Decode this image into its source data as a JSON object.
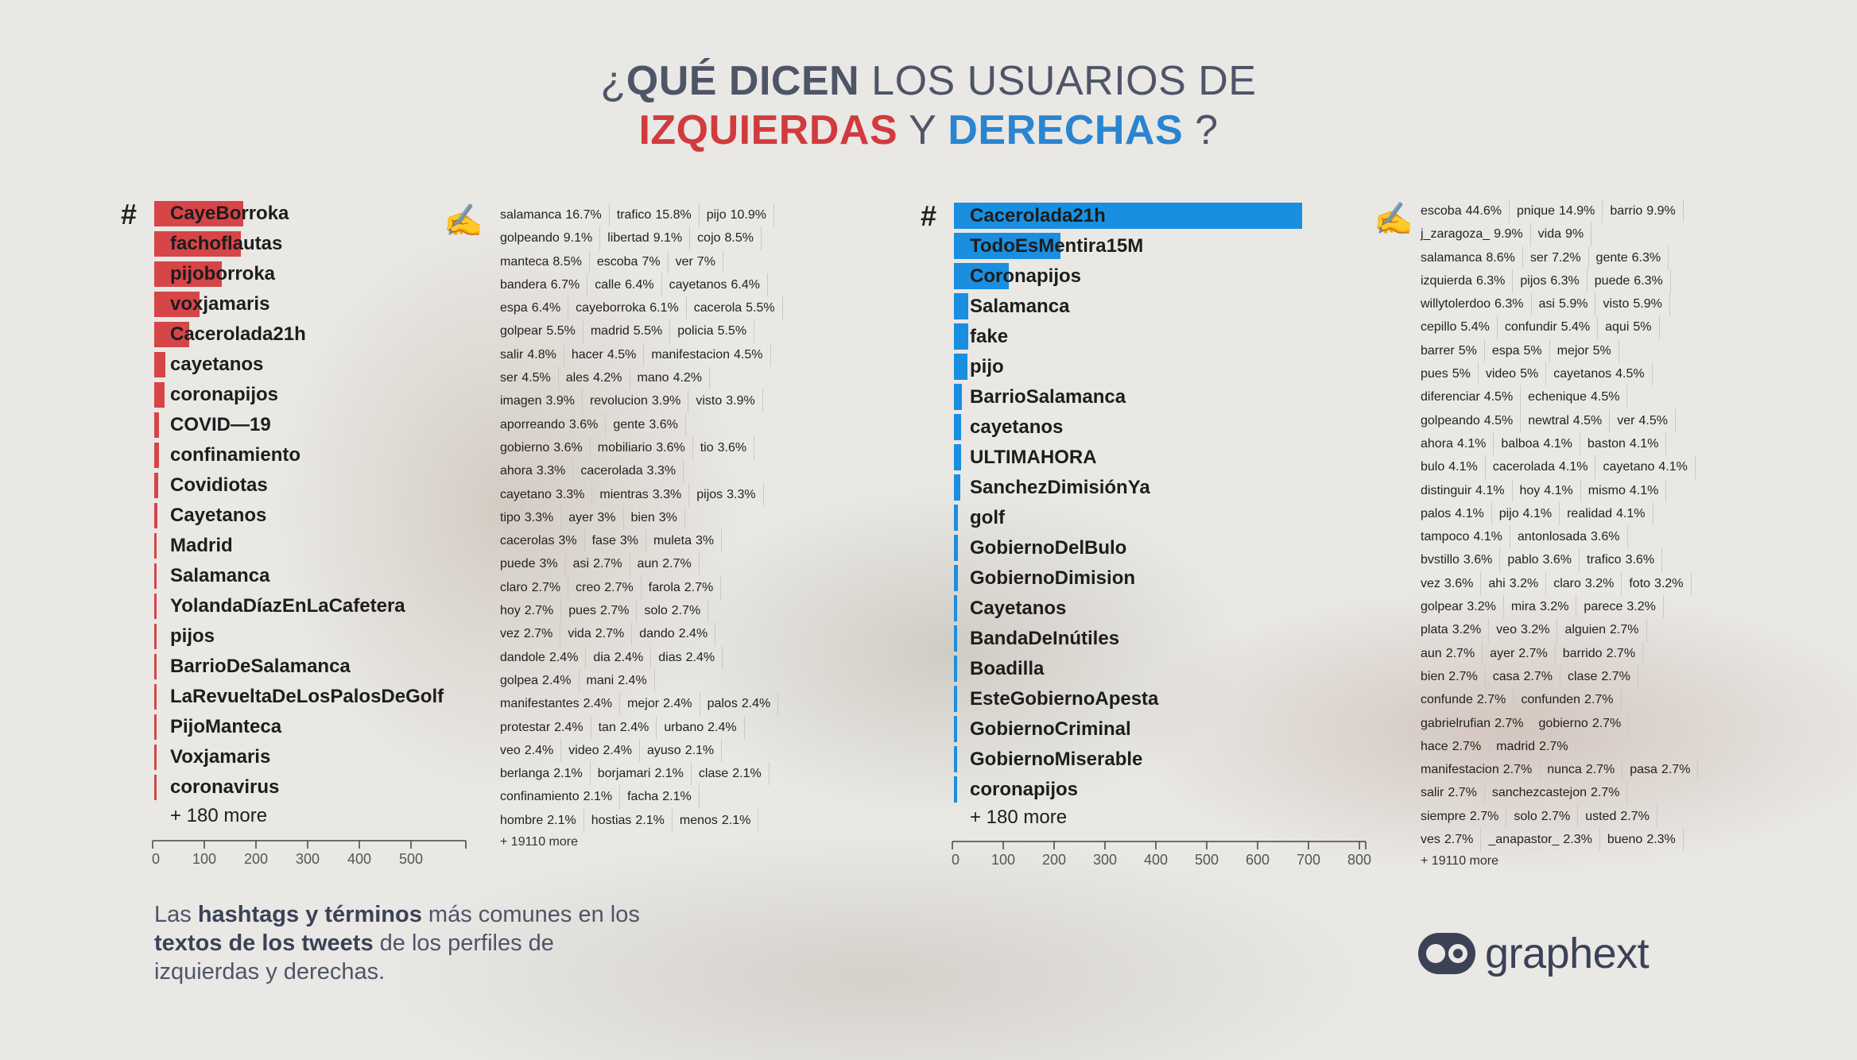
{
  "title": {
    "line1_prefix": "¿",
    "line1_bold": "QUÉ DICEN",
    "line1_rest": " LOS USUARIOS DE",
    "left_word": "IZQUIERDAS",
    "connector": " Y ",
    "right_word": "DERECHAS",
    "question_mark": " ?"
  },
  "colors": {
    "left_bar": "#d64548",
    "right_bar": "#1a8fe0",
    "title_red": "#d13b3e",
    "title_blue": "#2a84cf"
  },
  "icons": {
    "hashtag": "#",
    "terms": "writing-hand-icon"
  },
  "caption": {
    "p1": "Las ",
    "b1": "hashtags y términos",
    "p2": " más comunes en los",
    "b2": "textos de los tweets",
    "p3": " de los perfiles de",
    "p4": "izquierdas y derechas."
  },
  "logo_text": "graphext",
  "chart_data": [
    {
      "type": "bar",
      "orientation": "horizontal",
      "side": "izquierdas",
      "categories": [
        "CayeBorroka",
        "fachoflautas",
        "pijoborroka",
        "voxjamaris",
        "Cacerolada21h",
        "cayetanos",
        "coronapijos",
        "COVID—19",
        "confinamiento",
        "Covidiotas",
        "Cayetanos",
        "Madrid",
        "Salamanca",
        "YolandaDíazEnLaCafetera",
        "pijos",
        "BarrioDeSalamanca",
        "LaRevueltaDeLosPalosDeGolf",
        "PijoManteca",
        "Voxjamaris",
        "coronavirus"
      ],
      "values": [
        172,
        168,
        130,
        88,
        68,
        22,
        20,
        9,
        9,
        8,
        6,
        5,
        5,
        5,
        5,
        4,
        4,
        4,
        4,
        4
      ],
      "more": "+ 180 more",
      "xticks": [
        0,
        100,
        200,
        300,
        400,
        500
      ],
      "xlim": [
        0,
        600
      ]
    },
    {
      "type": "bar",
      "orientation": "horizontal",
      "side": "derechas",
      "categories": [
        "Cacerolada21h",
        "TodoEsMentira15M",
        "Coronapijos",
        "Salamanca",
        "fake",
        "pijo",
        "BarrioSalamanca",
        "cayetanos",
        "ULTIMAHORA",
        "SanchezDimisiónYa",
        "golf",
        "GobiernoDelBulo",
        "GobiernoDimision",
        "Cayetanos",
        "BandaDeInútiles",
        "Boadilla",
        "EsteGobiernoApesta",
        "GobiernoCriminal",
        "GobiernoMiserable",
        "coronapijos"
      ],
      "values": [
        685,
        210,
        108,
        28,
        28,
        26,
        16,
        14,
        14,
        12,
        8,
        8,
        8,
        7,
        7,
        6,
        6,
        6,
        6,
        6
      ],
      "more": "+ 180 more",
      "xticks": [
        0,
        100,
        200,
        300,
        400,
        500,
        600,
        700,
        800
      ],
      "xlim": [
        0,
        800
      ]
    },
    {
      "type": "table",
      "side": "izquierdas",
      "rows": [
        [
          [
            "salamanca",
            "16.7%"
          ],
          [
            "trafico",
            "15.8%"
          ],
          [
            "pijo",
            "10.9%"
          ]
        ],
        [
          [
            "golpeando",
            "9.1%"
          ],
          [
            "libertad",
            "9.1%"
          ],
          [
            "cojo",
            "8.5%"
          ]
        ],
        [
          [
            "manteca",
            "8.5%"
          ],
          [
            "escoba",
            "7%"
          ],
          [
            "ver",
            "7%"
          ]
        ],
        [
          [
            "bandera",
            "6.7%"
          ],
          [
            "calle",
            "6.4%"
          ],
          [
            "cayetanos",
            "6.4%"
          ]
        ],
        [
          [
            "espa",
            "6.4%"
          ],
          [
            "cayeborroka",
            "6.1%"
          ],
          [
            "cacerola",
            "5.5%"
          ]
        ],
        [
          [
            "golpear",
            "5.5%"
          ],
          [
            "madrid",
            "5.5%"
          ],
          [
            "policia",
            "5.5%"
          ]
        ],
        [
          [
            "salir",
            "4.8%"
          ],
          [
            "hacer",
            "4.5%"
          ],
          [
            "manifestacion",
            "4.5%"
          ]
        ],
        [
          [
            "ser",
            "4.5%"
          ],
          [
            "ales",
            "4.2%"
          ],
          [
            "mano",
            "4.2%"
          ]
        ],
        [
          [
            "imagen",
            "3.9%"
          ],
          [
            "revolucion",
            "3.9%"
          ],
          [
            "visto",
            "3.9%"
          ]
        ],
        [
          [
            "aporreando",
            "3.6%"
          ],
          [
            "gente",
            "3.6%"
          ]
        ],
        [
          [
            "gobierno",
            "3.6%"
          ],
          [
            "mobiliario",
            "3.6%"
          ],
          [
            "tio",
            "3.6%"
          ]
        ],
        [
          [
            "ahora",
            "3.3%"
          ],
          [
            "cacerolada",
            "3.3%"
          ]
        ],
        [
          [
            "cayetano",
            "3.3%"
          ],
          [
            "mientras",
            "3.3%"
          ],
          [
            "pijos",
            "3.3%"
          ]
        ],
        [
          [
            "tipo",
            "3.3%"
          ],
          [
            "ayer",
            "3%"
          ],
          [
            "bien",
            "3%"
          ]
        ],
        [
          [
            "cacerolas",
            "3%"
          ],
          [
            "fase",
            "3%"
          ],
          [
            "muleta",
            "3%"
          ]
        ],
        [
          [
            "puede",
            "3%"
          ],
          [
            "asi",
            "2.7%"
          ],
          [
            "aun",
            "2.7%"
          ]
        ],
        [
          [
            "claro",
            "2.7%"
          ],
          [
            "creo",
            "2.7%"
          ],
          [
            "farola",
            "2.7%"
          ]
        ],
        [
          [
            "hoy",
            "2.7%"
          ],
          [
            "pues",
            "2.7%"
          ],
          [
            "solo",
            "2.7%"
          ]
        ],
        [
          [
            "vez",
            "2.7%"
          ],
          [
            "vida",
            "2.7%"
          ],
          [
            "dando",
            "2.4%"
          ]
        ],
        [
          [
            "dandole",
            "2.4%"
          ],
          [
            "dia",
            "2.4%"
          ],
          [
            "dias",
            "2.4%"
          ]
        ],
        [
          [
            "golpea",
            "2.4%"
          ],
          [
            "mani",
            "2.4%"
          ]
        ],
        [
          [
            "manifestantes",
            "2.4%"
          ],
          [
            "mejor",
            "2.4%"
          ],
          [
            "palos",
            "2.4%"
          ]
        ],
        [
          [
            "protestar",
            "2.4%"
          ],
          [
            "tan",
            "2.4%"
          ],
          [
            "urbano",
            "2.4%"
          ]
        ],
        [
          [
            "veo",
            "2.4%"
          ],
          [
            "video",
            "2.4%"
          ],
          [
            "ayuso",
            "2.1%"
          ]
        ],
        [
          [
            "berlanga",
            "2.1%"
          ],
          [
            "borjamari",
            "2.1%"
          ],
          [
            "clase",
            "2.1%"
          ]
        ],
        [
          [
            "confinamiento",
            "2.1%"
          ],
          [
            "facha",
            "2.1%"
          ]
        ],
        [
          [
            "hombre",
            "2.1%"
          ],
          [
            "hostias",
            "2.1%"
          ],
          [
            "menos",
            "2.1%"
          ]
        ]
      ],
      "more": "+ 19110 more"
    },
    {
      "type": "table",
      "side": "derechas",
      "rows": [
        [
          [
            "escoba",
            "44.6%"
          ],
          [
            "pnique",
            "14.9%"
          ],
          [
            "barrio",
            "9.9%"
          ]
        ],
        [
          [
            "j_zaragoza_",
            "9.9%"
          ],
          [
            "vida",
            "9%"
          ]
        ],
        [
          [
            "salamanca",
            "8.6%"
          ],
          [
            "ser",
            "7.2%"
          ],
          [
            "gente",
            "6.3%"
          ]
        ],
        [
          [
            "izquierda",
            "6.3%"
          ],
          [
            "pijos",
            "6.3%"
          ],
          [
            "puede",
            "6.3%"
          ]
        ],
        [
          [
            "willytolerdoo",
            "6.3%"
          ],
          [
            "asi",
            "5.9%"
          ],
          [
            "visto",
            "5.9%"
          ]
        ],
        [
          [
            "cepillo",
            "5.4%"
          ],
          [
            "confundir",
            "5.4%"
          ],
          [
            "aqui",
            "5%"
          ]
        ],
        [
          [
            "barrer",
            "5%"
          ],
          [
            "espa",
            "5%"
          ],
          [
            "mejor",
            "5%"
          ]
        ],
        [
          [
            "pues",
            "5%"
          ],
          [
            "video",
            "5%"
          ],
          [
            "cayetanos",
            "4.5%"
          ]
        ],
        [
          [
            "diferenciar",
            "4.5%"
          ],
          [
            "echenique",
            "4.5%"
          ]
        ],
        [
          [
            "golpeando",
            "4.5%"
          ],
          [
            "newtral",
            "4.5%"
          ],
          [
            "ver",
            "4.5%"
          ]
        ],
        [
          [
            "ahora",
            "4.1%"
          ],
          [
            "balboa",
            "4.1%"
          ],
          [
            "baston",
            "4.1%"
          ]
        ],
        [
          [
            "bulo",
            "4.1%"
          ],
          [
            "cacerolada",
            "4.1%"
          ],
          [
            "cayetano",
            "4.1%"
          ]
        ],
        [
          [
            "distinguir",
            "4.1%"
          ],
          [
            "hoy",
            "4.1%"
          ],
          [
            "mismo",
            "4.1%"
          ]
        ],
        [
          [
            "palos",
            "4.1%"
          ],
          [
            "pijo",
            "4.1%"
          ],
          [
            "realidad",
            "4.1%"
          ]
        ],
        [
          [
            "tampoco",
            "4.1%"
          ],
          [
            "antonlosada",
            "3.6%"
          ]
        ],
        [
          [
            "bvstillo",
            "3.6%"
          ],
          [
            "pablo",
            "3.6%"
          ],
          [
            "trafico",
            "3.6%"
          ]
        ],
        [
          [
            "vez",
            "3.6%"
          ],
          [
            "ahi",
            "3.2%"
          ],
          [
            "claro",
            "3.2%"
          ],
          [
            "foto",
            "3.2%"
          ]
        ],
        [
          [
            "golpear",
            "3.2%"
          ],
          [
            "mira",
            "3.2%"
          ],
          [
            "parece",
            "3.2%"
          ]
        ],
        [
          [
            "plata",
            "3.2%"
          ],
          [
            "veo",
            "3.2%"
          ],
          [
            "alguien",
            "2.7%"
          ]
        ],
        [
          [
            "aun",
            "2.7%"
          ],
          [
            "ayer",
            "2.7%"
          ],
          [
            "barrido",
            "2.7%"
          ]
        ],
        [
          [
            "bien",
            "2.7%"
          ],
          [
            "casa",
            "2.7%"
          ],
          [
            "clase",
            "2.7%"
          ]
        ],
        [
          [
            "confunde",
            "2.7%"
          ],
          [
            "confunden",
            "2.7%"
          ]
        ],
        [
          [
            "gabrielrufian",
            "2.7%"
          ],
          [
            "gobierno",
            "2.7%"
          ]
        ],
        [
          [
            "hace",
            "2.7%"
          ],
          [
            "madrid",
            "2.7%"
          ]
        ],
        [
          [
            "manifestacion",
            "2.7%"
          ],
          [
            "nunca",
            "2.7%"
          ],
          [
            "pasa",
            "2.7%"
          ]
        ],
        [
          [
            "salir",
            "2.7%"
          ],
          [
            "sanchezcastejon",
            "2.7%"
          ]
        ],
        [
          [
            "siempre",
            "2.7%"
          ],
          [
            "solo",
            "2.7%"
          ],
          [
            "usted",
            "2.7%"
          ]
        ],
        [
          [
            "ves",
            "2.7%"
          ],
          [
            "_anapastor_",
            "2.3%"
          ],
          [
            "bueno",
            "2.3%"
          ]
        ]
      ],
      "more": "+ 19110 more"
    }
  ]
}
